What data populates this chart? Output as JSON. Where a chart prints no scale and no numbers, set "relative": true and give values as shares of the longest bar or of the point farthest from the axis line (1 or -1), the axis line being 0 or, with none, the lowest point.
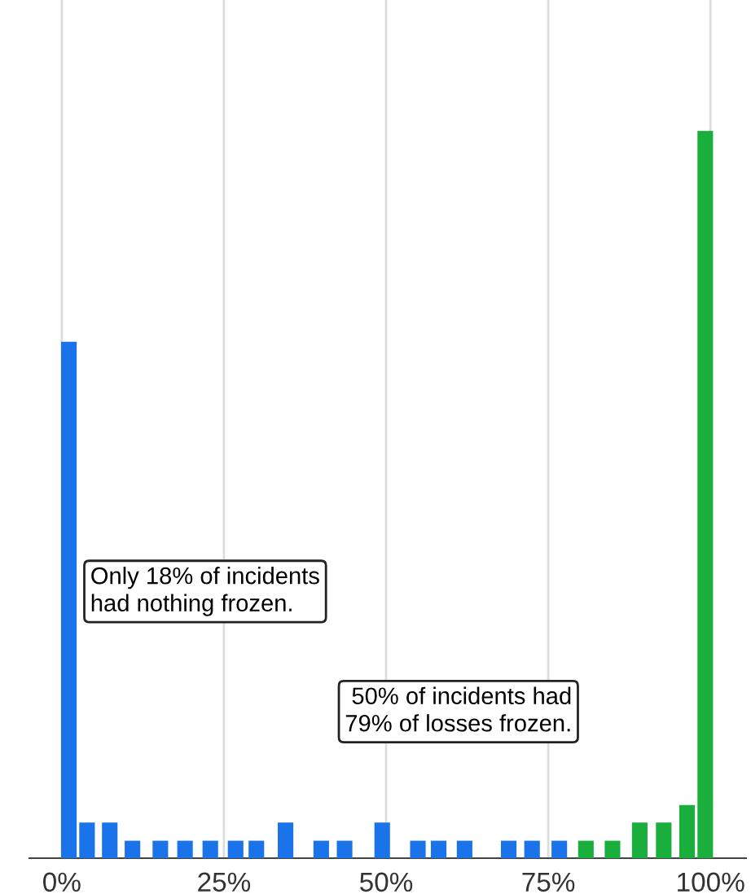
{
  "chart_data": {
    "type": "bar",
    "relative": true,
    "xlim": [
      -5,
      105.5
    ],
    "xticks": [
      {
        "value": 0,
        "label": "0%"
      },
      {
        "value": 25,
        "label": "25%"
      },
      {
        "value": 50,
        "label": "50%"
      },
      {
        "value": 75,
        "label": "75%"
      },
      {
        "value": 100,
        "label": "100%"
      }
    ],
    "tick_labels": "x",
    "grid": "x",
    "series": [
      {
        "color": "#1a73e8",
        "x": [
          1.1,
          3.9,
          7.4,
          10.9,
          15.2,
          19,
          22.9,
          26.8,
          30,
          34.5,
          40,
          43.6,
          49.4,
          54.9,
          58.1,
          62.1,
          68.9,
          72.5,
          76.7
        ],
        "values": [
          0.71,
          0.049,
          0.049,
          0.024,
          0.024,
          0.024,
          0.024,
          0.024,
          0.024,
          0.049,
          0.024,
          0.024,
          0.049,
          0.024,
          0.024,
          0.024,
          0.024,
          0.024,
          0.024
        ]
      },
      {
        "color": "#1aaf3c",
        "x": [
          80.8,
          84.9,
          89.1,
          92.8,
          96.4,
          99.2
        ],
        "values": [
          0.024,
          0.024,
          0.049,
          0.049,
          0.073,
          1
        ]
      }
    ],
    "annotations": [
      "Only 18% of incidents\nhad nothing frozen.",
      "50% of incidents had\n79% of losses frozen."
    ]
  }
}
